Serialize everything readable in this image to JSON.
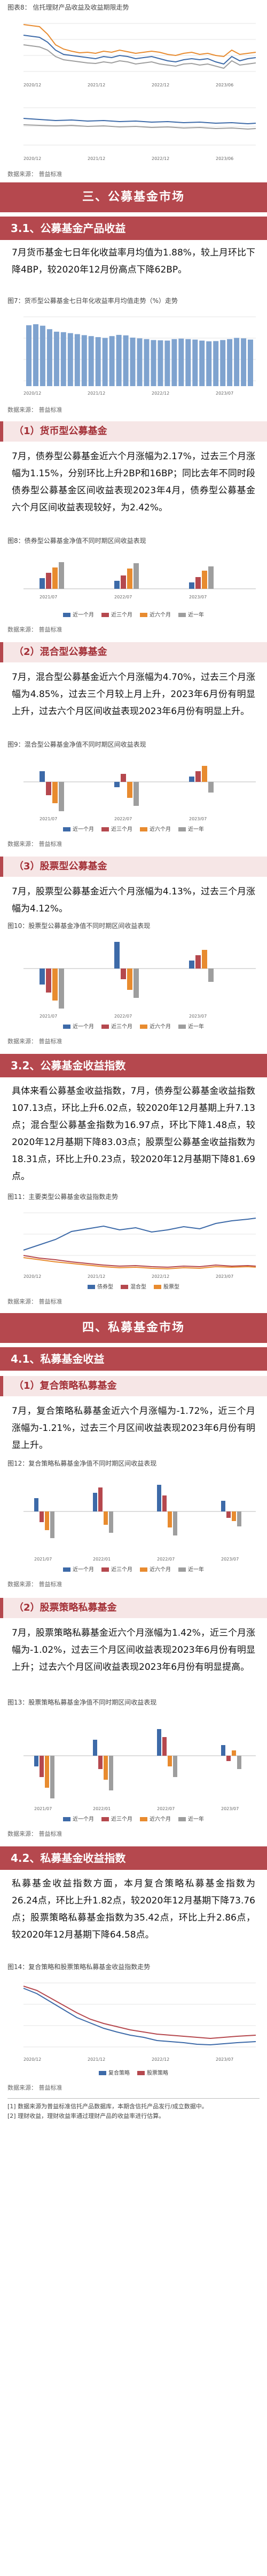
{
  "fig8": {
    "caption": "图表8： 信托理财产品收益及收益期限走势"
  },
  "source1": "数据来源： 普益标准",
  "banner3": "三、公募基金市场",
  "sec31": "3.1、公募基金产品收益",
  "para31": "7月货币基金七日年化收益率月均值为1.88%，较上月环比下降4BP，较2020年12月份高点下降62BP。",
  "fig7": {
    "caption": "图7：货币型公募基金七日年化收益率月均值走势（%）走势"
  },
  "source2": "数据来源： 普益标准",
  "sub1": "（1）货币型公募基金",
  "para_bond": "7月，债券型公募基金近六个月涨幅为2.17%，过去三个月涨幅为1.15%，分别环比上升2BP和16BP；同比去年不同时段债券型公募基金区间收益表现2023年4月，债券型公募基金六个月区间收益表现较好，为2.42%。",
  "fig_bond": {
    "caption": "图8：债券型公募基金净值不同时期区间收益表现"
  },
  "source3": "数据来源： 普益标准",
  "sub2": "（2）混合型公募基金",
  "para_mix": "7月，混合型公募基金近六个月涨幅为4.70%，过去三个月涨幅为4.85%，过去三个月较上月上升，2023年6月份有明显上升，过去六个月区间收益表现2023年6月份有明显上升。",
  "fig_mix": {
    "caption": "图9：混合型公募基金净值不同时期区间收益表现"
  },
  "source4": "数据来源： 普益标准",
  "sub3": "（3）股票型公募基金",
  "para_stock": "7月，股票型公募基金近六个月涨幅为4.13%，过去三个月涨幅为4.12%。",
  "fig_stock": {
    "caption": "图10：股票型公募基金净值不同时期区间收益表现"
  },
  "source5": "数据来源： 普益标准",
  "sec32": "3.2、公募基金收益指数",
  "para32": "具体来看公募基金收益指数，7月，债券型公募基金收益指数107.13点，环比上升6.02点，较2020年12月基期上升7.13点；混合型公募基金指数为16.97点，环比下降1.48点，较2020年12月基期下降83.03点；股票型公募基金收益指数为18.31点，环比上升0.23点，较2020年12月基期下降81.69点。",
  "fig_idx": {
    "caption": "图11：主要类型公募基金收益指数走势"
  },
  "source6": "数据来源： 普益标准",
  "banner4": "四、私募基金市场",
  "sec41": "4.1、私募基金收益",
  "sub4": "（1）复合策略私募基金",
  "para_comp": "7月，复合策略私募基金近六个月涨幅为-1.72%，近三个月涨幅为-1.21%，过去三个月区间收益表现2023年6月份有明显上升。",
  "fig_comp": {
    "caption": "图12：复合策略私募基金净值不同时期区间收益表现"
  },
  "source7": "数据来源： 普益标准",
  "sub5": "（2）股票策略私募基金",
  "para_pstock": "7月，股票策略私募基金近六个月涨幅为1.42%，近三个月涨幅为-1.02%，过去三个月区间收益表现2023年6月份有明显上升；过去六个月区间收益表现2023年6月份有明显提高。",
  "fig_pstock": {
    "caption": "图13：股票策略私募基金净值不同时期区间收益表现"
  },
  "source8": "数据来源： 普益标准",
  "sec42": "4.2、私募基金收益指数",
  "para42": "私募基金收益指数方面，本月复合策略私募基金指数为26.24点，环比上升1.82点，较2020年12月基期下降73.76点；股票策略私募基金指数为35.42点，环比上升2.86点，较2020年12月基期下降64.58点。",
  "fig_pidx": {
    "caption": "图14：复合策略和股票策略私募基金收益指数走势"
  },
  "source9": "数据来源： 普益标准",
  "notes": [
    "[1] 数据来源为普益标准信托产品数据库，本期含信托产品发行/成立数据中。",
    "[2] 理财收益，理财收益率通过理财产品的收益率进行估算。"
  ],
  "legend_periods": [
    "近一个月",
    "近三个月",
    "近六个月",
    "近一年"
  ],
  "legend_idx": [
    "债券型",
    "混合型",
    "股票型"
  ],
  "legend_pidx": [
    "复合策略",
    "股票策略"
  ],
  "colors": {
    "red": "#b5484e",
    "blue": "#3d6aa8",
    "orange": "#e88b2f",
    "gray": "#9e9e9e",
    "lightblue": "#7fa3cf"
  },
  "chart_data": [
    {
      "id": "money",
      "type": "bar",
      "values": [
        2.46,
        2.5,
        2.44,
        2.3,
        2.2,
        2.18,
        2.14,
        2.1,
        2.06,
        2.02,
        1.98,
        1.95,
        2.02,
        2.07,
        2.05,
        1.96,
        1.93,
        1.9,
        1.86,
        1.85,
        1.84,
        1.9,
        1.92,
        1.9,
        1.88,
        1.84,
        1.81,
        1.82,
        1.86,
        1.9,
        1.95,
        1.93,
        1.88
      ],
      "ylim": [
        0,
        2.8
      ]
    }
  ]
}
